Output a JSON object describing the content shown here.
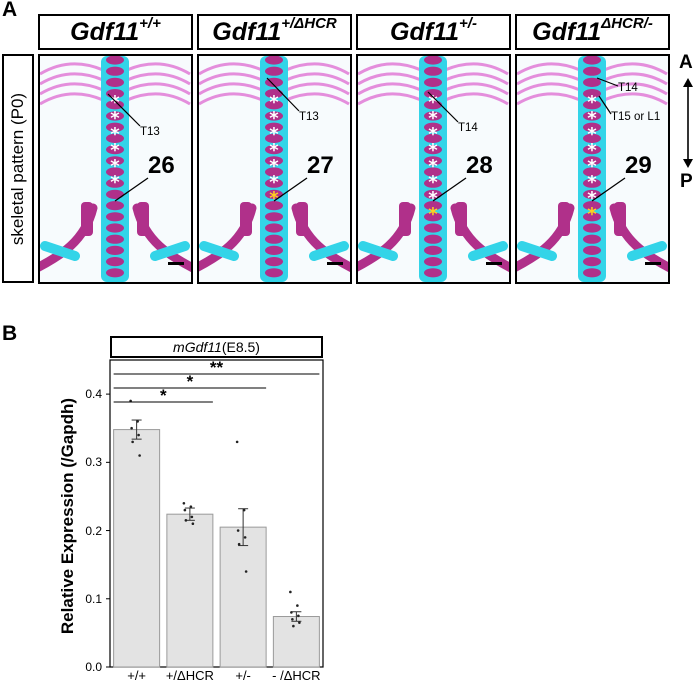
{
  "panel_a": {
    "letter": "A",
    "row_label": "skeletal pattern (P0)",
    "genotypes": [
      {
        "base": "Gdf11",
        "sup": "+/+"
      },
      {
        "base": "Gdf11",
        "sup": "+/ΔHCR"
      },
      {
        "base": "Gdf11",
        "sup": "+/-"
      },
      {
        "base": "Gdf11",
        "sup": "ΔHCR/-"
      }
    ],
    "photos": [
      {
        "count": "26",
        "vertebra_labels": [
          "T13"
        ],
        "white_stars": 6,
        "yellow_stars": 0
      },
      {
        "count": "27",
        "vertebra_labels": [
          "T13"
        ],
        "white_stars": 6,
        "yellow_stars": 1
      },
      {
        "count": "28",
        "vertebra_labels": [
          "T14"
        ],
        "white_stars": 7,
        "yellow_stars": 1
      },
      {
        "count": "29",
        "vertebra_labels": [
          "T14",
          "T15 or L1"
        ],
        "white_stars": 7,
        "yellow_stars": 1
      }
    ],
    "axis": {
      "top": "A",
      "bottom": "P"
    },
    "colors": {
      "bone": "#b0308a",
      "cartilage": "#33d4e8"
    }
  },
  "panel_b": {
    "letter": "B",
    "title_gene": "mGdf11",
    "title_suffix": "(E8.5)"
  },
  "chart_data": {
    "type": "bar",
    "title": "mGdf11(E8.5)",
    "ylabel": "Relative Expression (/Gapdh)",
    "categories": [
      "+/+",
      "+/ΔHCR",
      "+/-",
      "- /ΔHCR"
    ],
    "values": [
      0.348,
      0.224,
      0.205,
      0.074
    ],
    "errors": [
      0.014,
      0.009,
      0.027,
      0.007
    ],
    "points": [
      [
        0.39,
        0.36,
        0.35,
        0.34,
        0.33,
        0.31
      ],
      [
        0.24,
        0.235,
        0.23,
        0.22,
        0.215,
        0.21
      ],
      [
        0.33,
        0.23,
        0.2,
        0.19,
        0.18,
        0.14
      ],
      [
        0.11,
        0.09,
        0.08,
        0.075,
        0.07,
        0.065,
        0.06
      ]
    ],
    "ylim": [
      0.0,
      0.45
    ],
    "yticks": [
      "0.0",
      "0.1",
      "0.2",
      "0.3",
      "0.4"
    ],
    "significance": [
      {
        "from": 0,
        "to": 1,
        "label": "*"
      },
      {
        "from": 0,
        "to": 2,
        "label": "*"
      },
      {
        "from": 0,
        "to": 3,
        "label": "**"
      }
    ],
    "bar_color": "#e3e3e3"
  }
}
